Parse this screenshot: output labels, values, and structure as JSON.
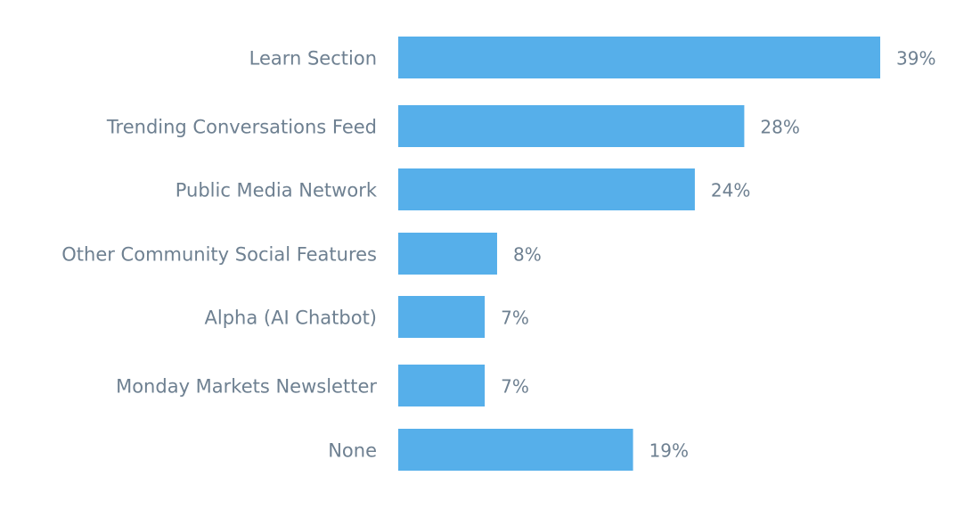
{
  "chart_data": {
    "type": "bar",
    "orientation": "horizontal",
    "title": "",
    "xlabel": "",
    "ylabel": "",
    "categories": [
      "Learn Section",
      "Trending Conversations Feed",
      "Public Media Network",
      "Other Community Social Features",
      "Alpha (AI Chatbot)",
      "Monday Markets Newsletter",
      "None"
    ],
    "values": [
      39,
      28,
      24,
      8,
      7,
      7,
      19
    ],
    "value_labels": [
      "39%",
      "28%",
      "24%",
      "8%",
      "7%",
      "7%",
      "19%"
    ],
    "unit": "%",
    "xlim": [
      0,
      39
    ],
    "grid": false,
    "colors": {
      "bar": "#56AFEA",
      "text": "#6E8091"
    }
  }
}
